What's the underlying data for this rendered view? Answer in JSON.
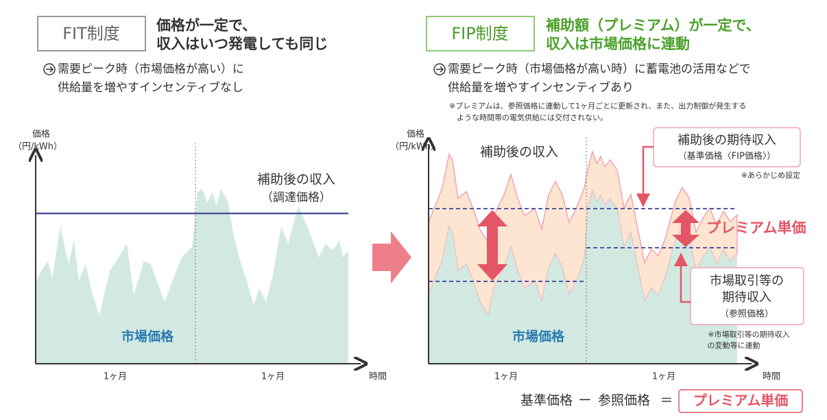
{
  "left": {
    "badge": "FIT制度",
    "heading": [
      "価格が一定で、",
      "収入はいつ発電しても同じ"
    ],
    "note": [
      "需要ピーク時（市場価格が高い）に",
      "供給量を増やすインセンティブなし"
    ],
    "chart": {
      "y_label": [
        "価格",
        "（円/kWh）"
      ],
      "income_label": [
        "補助後の収入",
        "（調達価格）"
      ],
      "market_label": "市場価格",
      "x_labels": [
        "1ヶ月",
        "1ヶ月"
      ],
      "x_axis_label": "時間"
    }
  },
  "right": {
    "badge": "FIP制度",
    "heading": [
      "補助額（プレミアム）が一定で、",
      "収入は市場価格に連動"
    ],
    "note": [
      "需要ピーク時（市場価格が高い時）に蓄電池の活用などで",
      "供給量を増やすインセンティブあり"
    ],
    "footnote": [
      "※プレミアムは、参照価格に連動して1ヶ月ごとに更新され、また、出力制御が発生する",
      "ような時間帯の電気供給には交付されない。"
    ],
    "chart": {
      "y_label": [
        "価格",
        "（円/kWh）"
      ],
      "income_label": "補助後の収入",
      "expected_income": [
        "補助後の期待収入",
        "（基準価格〈FIP価格〉）"
      ],
      "expected_income_note": "※あらかじめ設定",
      "premium_label": "プレミアム単価",
      "market_expected": [
        "市場取引等の",
        "期待収入",
        "（参照価格）"
      ],
      "market_expected_note": [
        "※市場取引等の期待収入",
        "の変動等に連動"
      ],
      "market_label": "市場価格",
      "x_labels": [
        "1ヶ月",
        "1ヶ月"
      ],
      "x_axis_label": "時間"
    },
    "formula": {
      "left": "基準価格",
      "minus": "ー",
      "middle": "参照価格",
      "equals": "＝",
      "result": "プレミアム単価"
    }
  }
}
